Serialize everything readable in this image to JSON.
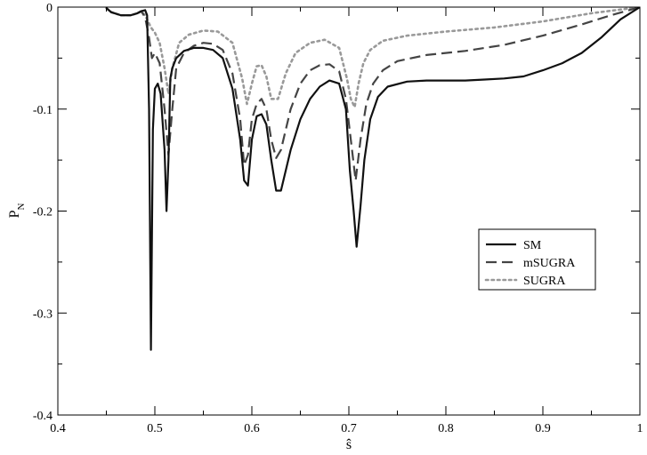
{
  "chart_data": {
    "type": "line",
    "title": "",
    "xlabel": "ŝ",
    "ylabel": "P_N",
    "ylabel_main": "P",
    "ylabel_sub": "N",
    "xlim": [
      0.4,
      1.0
    ],
    "ylim": [
      -0.4,
      0.0
    ],
    "grid": false,
    "legend_position": "right-middle",
    "x_ticks": [
      0.4,
      0.5,
      0.6,
      0.7,
      0.8,
      0.9,
      1.0
    ],
    "x_tick_labels": [
      "0.4",
      "0.5",
      "0.6",
      "0.7",
      "0.8",
      "0.9",
      "1"
    ],
    "y_ticks": [
      0.0,
      -0.1,
      -0.2,
      -0.3,
      -0.4
    ],
    "y_tick_labels": [
      "0",
      "-0.1",
      "-0.2",
      "-0.3",
      "-0.4"
    ],
    "series": [
      {
        "name": "SM",
        "style": "solid",
        "color": "#111111",
        "x": [
          0.45,
          0.455,
          0.465,
          0.475,
          0.482,
          0.486,
          0.49,
          0.492,
          0.494,
          0.496,
          0.498,
          0.5,
          0.503,
          0.506,
          0.51,
          0.512,
          0.514,
          0.516,
          0.518,
          0.522,
          0.53,
          0.54,
          0.55,
          0.56,
          0.57,
          0.58,
          0.588,
          0.592,
          0.596,
          0.6,
          0.605,
          0.61,
          0.615,
          0.62,
          0.625,
          0.63,
          0.64,
          0.65,
          0.66,
          0.67,
          0.68,
          0.69,
          0.697,
          0.701,
          0.705,
          0.708,
          0.712,
          0.716,
          0.722,
          0.73,
          0.74,
          0.76,
          0.78,
          0.8,
          0.82,
          0.84,
          0.86,
          0.88,
          0.9,
          0.92,
          0.94,
          0.96,
          0.98,
          1.0
        ],
        "y": [
          -0.001,
          -0.005,
          -0.008,
          -0.008,
          -0.006,
          -0.004,
          -0.003,
          -0.008,
          -0.1,
          -0.336,
          -0.12,
          -0.08,
          -0.075,
          -0.085,
          -0.14,
          -0.2,
          -0.15,
          -0.07,
          -0.06,
          -0.05,
          -0.043,
          -0.04,
          -0.04,
          -0.042,
          -0.05,
          -0.08,
          -0.13,
          -0.17,
          -0.175,
          -0.13,
          -0.107,
          -0.105,
          -0.115,
          -0.15,
          -0.18,
          -0.18,
          -0.14,
          -0.11,
          -0.09,
          -0.078,
          -0.072,
          -0.075,
          -0.1,
          -0.16,
          -0.2,
          -0.235,
          -0.195,
          -0.15,
          -0.11,
          -0.088,
          -0.078,
          -0.073,
          -0.072,
          -0.072,
          -0.072,
          -0.071,
          -0.07,
          -0.068,
          -0.062,
          -0.055,
          -0.045,
          -0.03,
          -0.012,
          0.0
        ]
      },
      {
        "name": "mSUGRA",
        "style": "dashed",
        "color": "#444444",
        "x": [
          0.45,
          0.455,
          0.465,
          0.475,
          0.482,
          0.486,
          0.49,
          0.494,
          0.497,
          0.5,
          0.505,
          0.51,
          0.514,
          0.518,
          0.522,
          0.53,
          0.54,
          0.55,
          0.56,
          0.57,
          0.58,
          0.588,
          0.592,
          0.596,
          0.6,
          0.605,
          0.61,
          0.615,
          0.62,
          0.625,
          0.63,
          0.64,
          0.65,
          0.66,
          0.67,
          0.68,
          0.69,
          0.697,
          0.702,
          0.707,
          0.712,
          0.718,
          0.725,
          0.735,
          0.75,
          0.78,
          0.82,
          0.86,
          0.9,
          0.94,
          0.97,
          1.0
        ],
        "y": [
          -0.001,
          -0.005,
          -0.008,
          -0.008,
          -0.006,
          -0.004,
          -0.01,
          -0.03,
          -0.05,
          -0.045,
          -0.055,
          -0.1,
          -0.145,
          -0.1,
          -0.06,
          -0.045,
          -0.038,
          -0.035,
          -0.036,
          -0.042,
          -0.065,
          -0.11,
          -0.155,
          -0.145,
          -0.11,
          -0.095,
          -0.09,
          -0.1,
          -0.13,
          -0.148,
          -0.14,
          -0.1,
          -0.075,
          -0.062,
          -0.057,
          -0.056,
          -0.063,
          -0.09,
          -0.13,
          -0.17,
          -0.13,
          -0.095,
          -0.075,
          -0.062,
          -0.053,
          -0.047,
          -0.043,
          -0.037,
          -0.028,
          -0.017,
          -0.008,
          0.0
        ]
      },
      {
        "name": "SUGRA",
        "style": "dotted",
        "color": "#999999",
        "x": [
          0.45,
          0.455,
          0.465,
          0.475,
          0.482,
          0.486,
          0.49,
          0.496,
          0.5,
          0.505,
          0.51,
          0.514,
          0.518,
          0.525,
          0.535,
          0.55,
          0.565,
          0.58,
          0.59,
          0.595,
          0.6,
          0.605,
          0.61,
          0.615,
          0.62,
          0.627,
          0.635,
          0.645,
          0.66,
          0.675,
          0.69,
          0.698,
          0.702,
          0.706,
          0.71,
          0.715,
          0.722,
          0.735,
          0.76,
          0.8,
          0.85,
          0.9,
          0.95,
          1.0
        ],
        "y": [
          -0.001,
          -0.005,
          -0.008,
          -0.008,
          -0.006,
          -0.004,
          -0.008,
          -0.02,
          -0.025,
          -0.035,
          -0.06,
          -0.085,
          -0.06,
          -0.035,
          -0.027,
          -0.023,
          -0.024,
          -0.035,
          -0.07,
          -0.095,
          -0.075,
          -0.058,
          -0.057,
          -0.068,
          -0.09,
          -0.09,
          -0.065,
          -0.045,
          -0.035,
          -0.032,
          -0.04,
          -0.07,
          -0.09,
          -0.098,
          -0.075,
          -0.055,
          -0.042,
          -0.033,
          -0.028,
          -0.024,
          -0.02,
          -0.014,
          -0.006,
          0.0
        ]
      }
    ]
  }
}
